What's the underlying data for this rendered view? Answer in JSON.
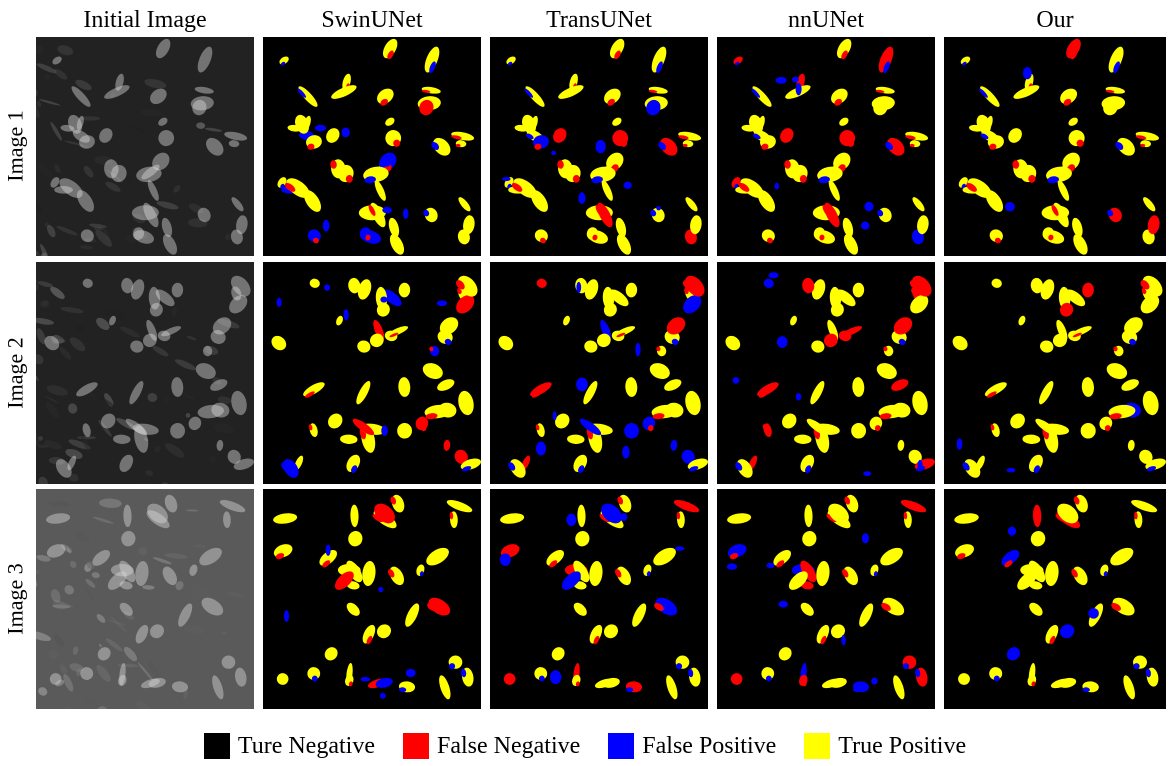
{
  "column_headers": [
    "Initial Image",
    "SwinUNet",
    "TransUNet",
    "nnUNet",
    "Our"
  ],
  "row_labels": [
    "Image 1",
    "Image 2",
    "Image 3"
  ],
  "legend": [
    {
      "label": "Ture Negative",
      "color": "#000000"
    },
    {
      "label": "False Negative",
      "color": "#ff0000"
    },
    {
      "label": "False Positive",
      "color": "#0000ff"
    },
    {
      "label": "True Positive",
      "color": "#ffff00"
    }
  ]
}
